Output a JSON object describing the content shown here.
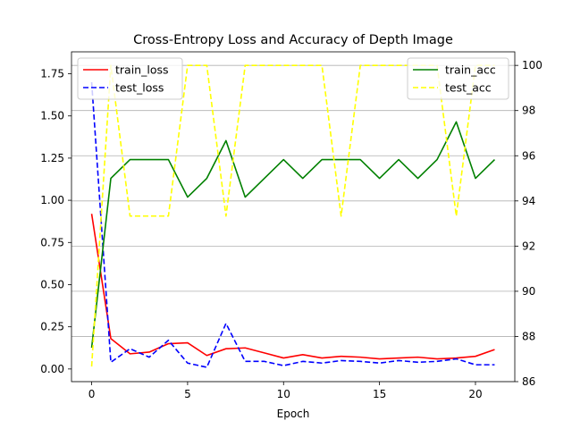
{
  "chart_data": {
    "type": "line",
    "title": "Cross-Entropy Loss and Accuracy of Depth Image",
    "xlabel": "Epoch",
    "ylabel_left": "",
    "ylabel_right": "",
    "x": [
      0,
      1,
      2,
      3,
      4,
      5,
      6,
      7,
      8,
      9,
      10,
      11,
      12,
      13,
      14,
      15,
      16,
      17,
      18,
      19,
      20,
      21
    ],
    "xlim": [
      -1.05,
      22.05
    ],
    "ylim_left": [
      -0.075,
      1.88
    ],
    "ylim_right": [
      86,
      100.6
    ],
    "x_ticks": [
      0,
      5,
      10,
      15,
      20
    ],
    "y_ticks_left": [
      0.0,
      0.25,
      0.5,
      0.75,
      1.0,
      1.25,
      1.5,
      1.75
    ],
    "y_ticks_right": [
      86,
      88,
      90,
      92,
      94,
      96,
      98,
      100
    ],
    "grid": "horizontal-right-axis",
    "series_left": [
      {
        "name": "train_loss",
        "color": "#ff0000",
        "dash": "solid",
        "values": [
          0.92,
          0.18,
          0.09,
          0.1,
          0.15,
          0.155,
          0.08,
          0.12,
          0.125,
          0.095,
          0.065,
          0.085,
          0.065,
          0.075,
          0.07,
          0.06,
          0.065,
          0.07,
          0.06,
          0.065,
          0.075,
          0.115
        ]
      },
      {
        "name": "test_loss",
        "color": "#0000ff",
        "dash": "dashed",
        "values": [
          1.7,
          0.04,
          0.12,
          0.07,
          0.17,
          0.035,
          0.01,
          0.27,
          0.045,
          0.045,
          0.02,
          0.045,
          0.035,
          0.05,
          0.045,
          0.035,
          0.05,
          0.04,
          0.045,
          0.06,
          0.025,
          0.025
        ]
      }
    ],
    "series_right": [
      {
        "name": "train_acc",
        "color": "#008000",
        "dash": "solid",
        "values": [
          87.5,
          95.0,
          95.83,
          95.83,
          95.83,
          94.17,
          95.0,
          96.67,
          94.17,
          95.0,
          95.83,
          95.0,
          95.83,
          95.83,
          95.83,
          95.0,
          95.83,
          95.0,
          95.83,
          97.5,
          95.0,
          95.83
        ]
      },
      {
        "name": "test_acc",
        "color": "#ffff00",
        "dash": "dashed",
        "values": [
          86.67,
          100,
          93.33,
          93.33,
          93.33,
          100,
          100,
          93.33,
          100,
          100,
          100,
          100,
          100,
          93.33,
          100,
          100,
          100,
          100,
          100,
          93.33,
          100,
          100
        ]
      }
    ],
    "legend_left_placement": "upper-left",
    "legend_right_placement": "upper-right"
  }
}
